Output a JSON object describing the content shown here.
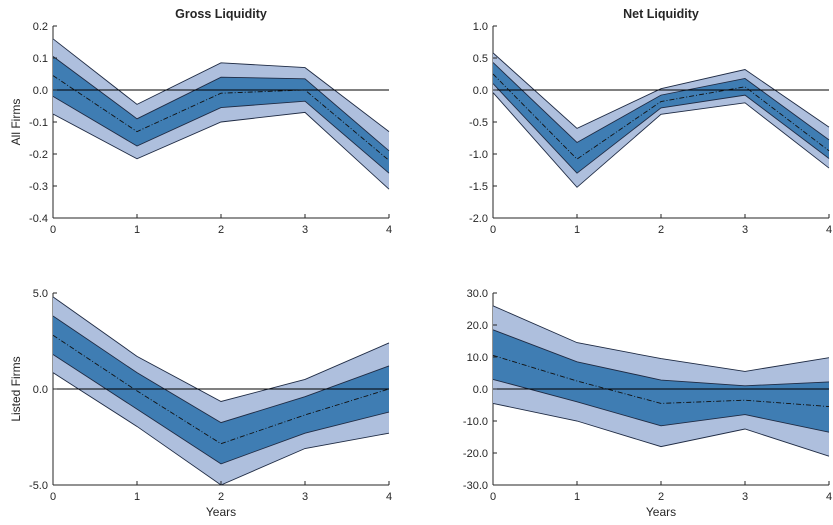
{
  "colors": {
    "outer_band": "#aebfdd",
    "inner_band": "#3f7db3",
    "band_edge": "#1f2b44",
    "zero_line": "#000000",
    "axis": "#262626"
  },
  "chart_data": [
    {
      "id": "p1",
      "type": "area",
      "title": "Gross Liquidity",
      "ylabel": "All Firms",
      "xlabel": "",
      "x": [
        0,
        1,
        2,
        3,
        4
      ],
      "xticks": [
        "0",
        "1",
        "2",
        "3",
        "4"
      ],
      "ylim": [
        -0.4,
        0.2
      ],
      "yticks": [
        -0.4,
        -0.3,
        -0.2,
        -0.1,
        0.0,
        0.1,
        0.2
      ],
      "ytick_labels": [
        "-0.4",
        "-0.3",
        "-0.2",
        "-0.1",
        "0.0",
        "0.1",
        "0.2"
      ],
      "zero_line": 0,
      "series": [
        {
          "role": "outer_upper",
          "values": [
            0.16,
            -0.045,
            0.085,
            0.07,
            -0.13
          ]
        },
        {
          "role": "inner_upper",
          "values": [
            0.105,
            -0.09,
            0.04,
            0.035,
            -0.19
          ]
        },
        {
          "role": "point_estimate",
          "values": [
            0.045,
            -0.13,
            -0.01,
            0.0,
            -0.22
          ]
        },
        {
          "role": "inner_lower",
          "values": [
            -0.02,
            -0.175,
            -0.055,
            -0.035,
            -0.26
          ]
        },
        {
          "role": "outer_lower",
          "values": [
            -0.075,
            -0.215,
            -0.1,
            -0.07,
            -0.31
          ]
        }
      ]
    },
    {
      "id": "p2",
      "type": "area",
      "title": "Net Liquidity",
      "ylabel": "",
      "xlabel": "",
      "x": [
        0,
        1,
        2,
        3,
        4
      ],
      "xticks": [
        "0",
        "1",
        "2",
        "3",
        "4"
      ],
      "ylim": [
        -2.0,
        1.0
      ],
      "yticks": [
        -2.0,
        -1.5,
        -1.0,
        -0.5,
        0.0,
        0.5,
        1.0
      ],
      "ytick_labels": [
        "-2.0",
        "-1.5",
        "-1.0",
        "-0.5",
        "0.0",
        "0.5",
        "1.0"
      ],
      "zero_line": 0,
      "series": [
        {
          "role": "outer_upper",
          "values": [
            0.58,
            -0.6,
            0.02,
            0.32,
            -0.58
          ]
        },
        {
          "role": "inner_upper",
          "values": [
            0.43,
            -0.82,
            -0.08,
            0.18,
            -0.78
          ]
        },
        {
          "role": "point_estimate",
          "values": [
            0.25,
            -1.08,
            -0.18,
            0.05,
            -0.95
          ]
        },
        {
          "role": "inner_lower",
          "values": [
            0.1,
            -1.3,
            -0.28,
            -0.08,
            -1.07
          ]
        },
        {
          "role": "outer_lower",
          "values": [
            -0.04,
            -1.52,
            -0.38,
            -0.2,
            -1.22
          ]
        }
      ]
    },
    {
      "id": "p3",
      "type": "area",
      "title": "",
      "ylabel": "Listed Firms",
      "xlabel": "Years",
      "x": [
        0,
        1,
        2,
        3,
        4
      ],
      "xticks": [
        "0",
        "1",
        "2",
        "3",
        "4"
      ],
      "ylim": [
        -5.0,
        5.0
      ],
      "yticks": [
        -5.0,
        0.0,
        5.0
      ],
      "ytick_labels": [
        "-5.0",
        "0.0",
        "5.0"
      ],
      "zero_line": 0,
      "series": [
        {
          "role": "outer_upper",
          "values": [
            4.8,
            1.7,
            -0.65,
            0.5,
            2.4
          ]
        },
        {
          "role": "inner_upper",
          "values": [
            3.8,
            0.85,
            -1.75,
            -0.4,
            1.2
          ]
        },
        {
          "role": "point_estimate",
          "values": [
            2.8,
            -0.1,
            -2.85,
            -1.35,
            0.0
          ]
        },
        {
          "role": "inner_lower",
          "values": [
            1.8,
            -1.05,
            -3.9,
            -2.3,
            -1.2
          ]
        },
        {
          "role": "outer_lower",
          "values": [
            0.85,
            -1.95,
            -5.0,
            -3.1,
            -2.3
          ]
        }
      ]
    },
    {
      "id": "p4",
      "type": "area",
      "title": "",
      "ylabel": "",
      "xlabel": "Years",
      "x": [
        0,
        1,
        2,
        3,
        4
      ],
      "xticks": [
        "0",
        "1",
        "2",
        "3",
        "4"
      ],
      "ylim": [
        -30.0,
        30.0
      ],
      "yticks": [
        -30.0,
        -20.0,
        -10.0,
        0.0,
        10.0,
        20.0,
        30.0
      ],
      "ytick_labels": [
        "-30.0",
        "-20.0",
        "-10.0",
        "0.0",
        "10.0",
        "20.0",
        "30.0"
      ],
      "zero_line": 0,
      "series": [
        {
          "role": "outer_upper",
          "values": [
            26.0,
            14.5,
            9.5,
            5.5,
            9.8
          ]
        },
        {
          "role": "inner_upper",
          "values": [
            18.5,
            8.5,
            2.8,
            1.0,
            2.2
          ]
        },
        {
          "role": "point_estimate",
          "values": [
            10.5,
            2.5,
            -4.5,
            -3.5,
            -5.5
          ]
        },
        {
          "role": "inner_lower",
          "values": [
            3.0,
            -4.0,
            -11.5,
            -8.0,
            -13.5
          ]
        },
        {
          "role": "outer_lower",
          "values": [
            -4.5,
            -10.0,
            -18.0,
            -12.5,
            -21.0
          ]
        }
      ]
    }
  ]
}
